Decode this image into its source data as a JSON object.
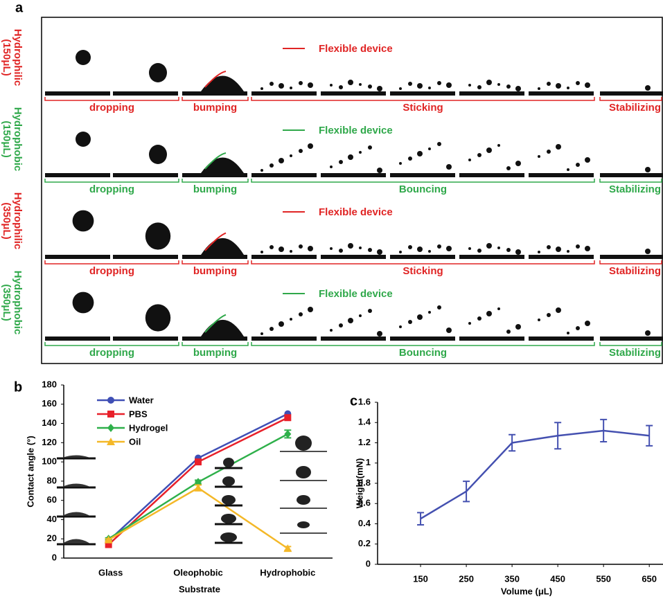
{
  "panel_a": {
    "label": "a",
    "rows": [
      {
        "label": [
          "Hydrophilic",
          "(150μL)"
        ],
        "color": "#e02424",
        "legend": "Flexible device",
        "stages": [
          "dropping",
          "bumping",
          "Sticking",
          "Stabilizing"
        ]
      },
      {
        "label": [
          "Hydrophobic",
          "(150μL)"
        ],
        "color": "#2fa84a",
        "legend": "Flexible device",
        "stages": [
          "dropping",
          "bumping",
          "Bouncing",
          "Stabilizing"
        ]
      },
      {
        "label": [
          "Hydrophilic",
          "(350μL)"
        ],
        "color": "#e02424",
        "legend": "Flexible device",
        "stages": [
          "dropping",
          "bumping",
          "Sticking",
          "Stabilizing"
        ]
      },
      {
        "label": [
          "Hydrophobic",
          "(350μL)"
        ],
        "color": "#2fa84a",
        "legend": "Flexible device",
        "stages": [
          "dropping",
          "bumping",
          "Bouncing",
          "Stabilizing"
        ]
      }
    ]
  },
  "chart_data": [
    {
      "type": "line",
      "label": "b",
      "categories": [
        "Glass",
        "Oleophobic",
        "Hydrophobic"
      ],
      "x_label": "Substrate",
      "y_label": "Contact angle (°)",
      "ylim": [
        0,
        180
      ],
      "yticks": [
        0,
        20,
        40,
        60,
        80,
        100,
        120,
        140,
        160,
        180
      ],
      "series": [
        {
          "name": "Water",
          "color": "#3f4fb5",
          "marker": "circle",
          "values": [
            18,
            104,
            150
          ]
        },
        {
          "name": "PBS",
          "color": "#e8202a",
          "marker": "square",
          "values": [
            14,
            100,
            146
          ]
        },
        {
          "name": "Hydrogel",
          "color": "#2eb04a",
          "marker": "diamond",
          "values": [
            20,
            79,
            129
          ],
          "errors": [
            1,
            2,
            4
          ]
        },
        {
          "name": "Oil",
          "color": "#f4b828",
          "marker": "triangle",
          "values": [
            19,
            73,
            10
          ],
          "errors": [
            1,
            3,
            2
          ]
        }
      ]
    },
    {
      "type": "line",
      "label": "c",
      "x": [
        150,
        250,
        350,
        450,
        550,
        650
      ],
      "x_label": "Volume (μL)",
      "y_label": "Weight(mN)",
      "xlim": [
        56,
        680
      ],
      "xticks": [
        150,
        250,
        350,
        450,
        550,
        650
      ],
      "ylim": [
        0,
        1.6
      ],
      "yticks": [
        0,
        0.2,
        0.4,
        0.6,
        0.8,
        1,
        1.2,
        1.4,
        1.6
      ],
      "series": [
        {
          "name": null,
          "color": "#4450b0",
          "marker": "none",
          "values": [
            0.45,
            0.72,
            1.2,
            1.27,
            1.32,
            1.27
          ],
          "errors": [
            0.06,
            0.1,
            0.08,
            0.13,
            0.11,
            0.1
          ]
        }
      ]
    }
  ]
}
